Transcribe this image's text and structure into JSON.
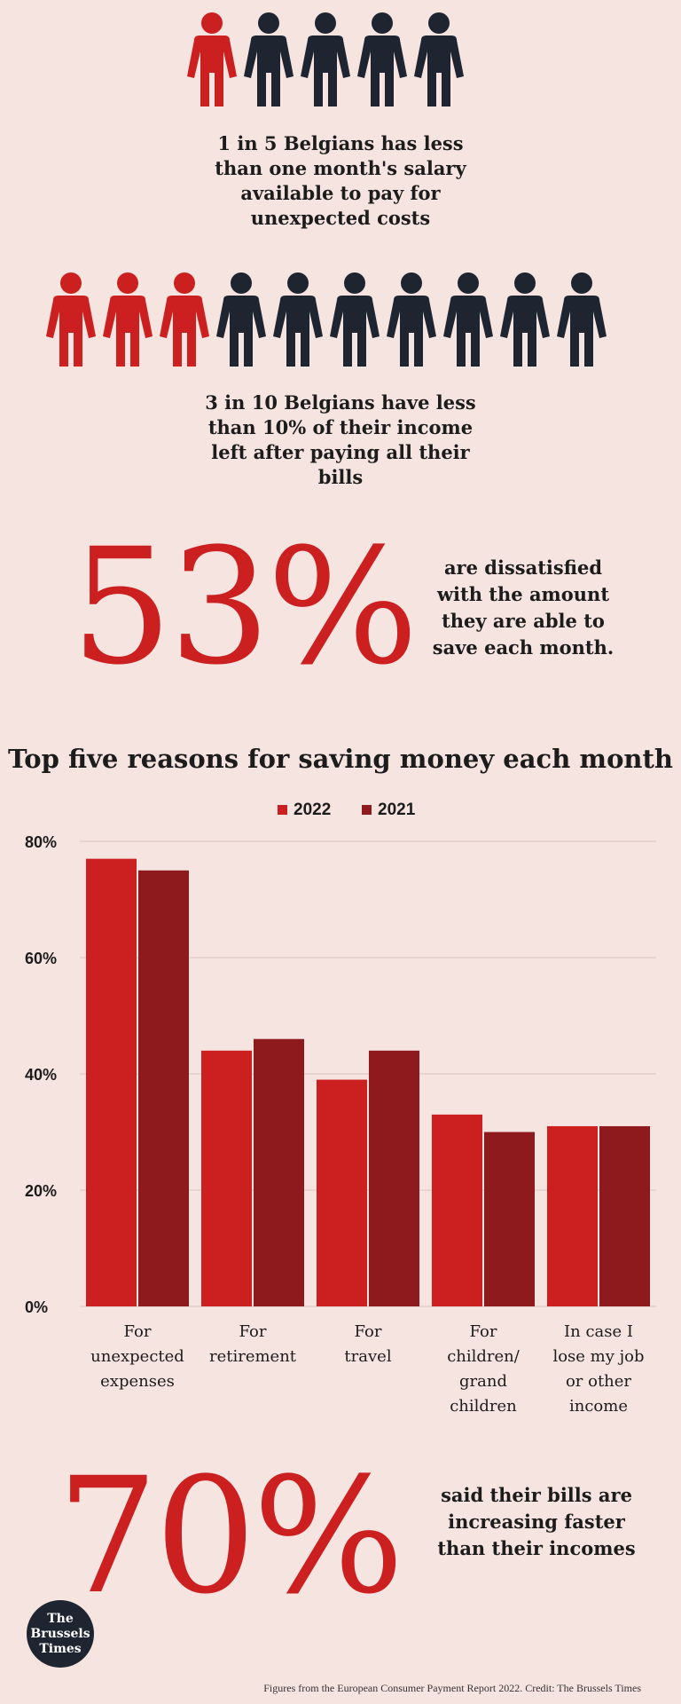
{
  "stats": {
    "stat1": {
      "text_lines": [
        "1 in 5 Belgians has less",
        "than one month's salary",
        "available to pay for",
        "unexpected costs"
      ],
      "highlighted": 1,
      "total": 5
    },
    "stat2": {
      "text_lines": [
        "3 in 10 Belgians have less",
        "than 10% of their income",
        "left after paying all their",
        "bills"
      ],
      "highlighted": 3,
      "total": 10
    },
    "stat3": {
      "value": "53%",
      "text_lines": [
        "are dissatisfied",
        "with the amount",
        "they are able to",
        "save each month."
      ]
    },
    "stat4": {
      "value": "70%",
      "text_lines": [
        "said their bills are",
        "increasing faster",
        "than their incomes"
      ]
    }
  },
  "colors": {
    "highlight": "#cc1f1f",
    "person": "#1e2430",
    "bar2022": "#cc1f1f",
    "bar2021": "#8f1a1d",
    "background": "#f6e4e1"
  },
  "chart_data": {
    "type": "bar",
    "title": "Top five reasons for saving money each month",
    "categories": [
      [
        "For",
        "unexpected",
        "expenses"
      ],
      [
        "For",
        "retirement"
      ],
      [
        "For",
        "travel"
      ],
      [
        "For",
        "children/",
        "grand",
        "children"
      ],
      [
        "In case I",
        "lose my job",
        "or other",
        "income"
      ]
    ],
    "series": [
      {
        "name": "2022",
        "color": "#cc1f1f",
        "values": [
          77,
          44,
          39,
          33,
          31
        ]
      },
      {
        "name": "2021",
        "color": "#8f1a1d",
        "values": [
          75,
          46,
          44,
          30,
          31
        ]
      }
    ],
    "ylim": [
      0,
      80
    ],
    "yticks": [
      "0%",
      "20%",
      "40%",
      "60%",
      "80%"
    ],
    "legend_position": "top-center",
    "grid": true
  },
  "footer": {
    "credit": "Figures from the European Consumer Payment Report 2022. Credit: The Brussels Times"
  },
  "logo": {
    "lines": [
      "The",
      "Brussels",
      "Times"
    ]
  }
}
